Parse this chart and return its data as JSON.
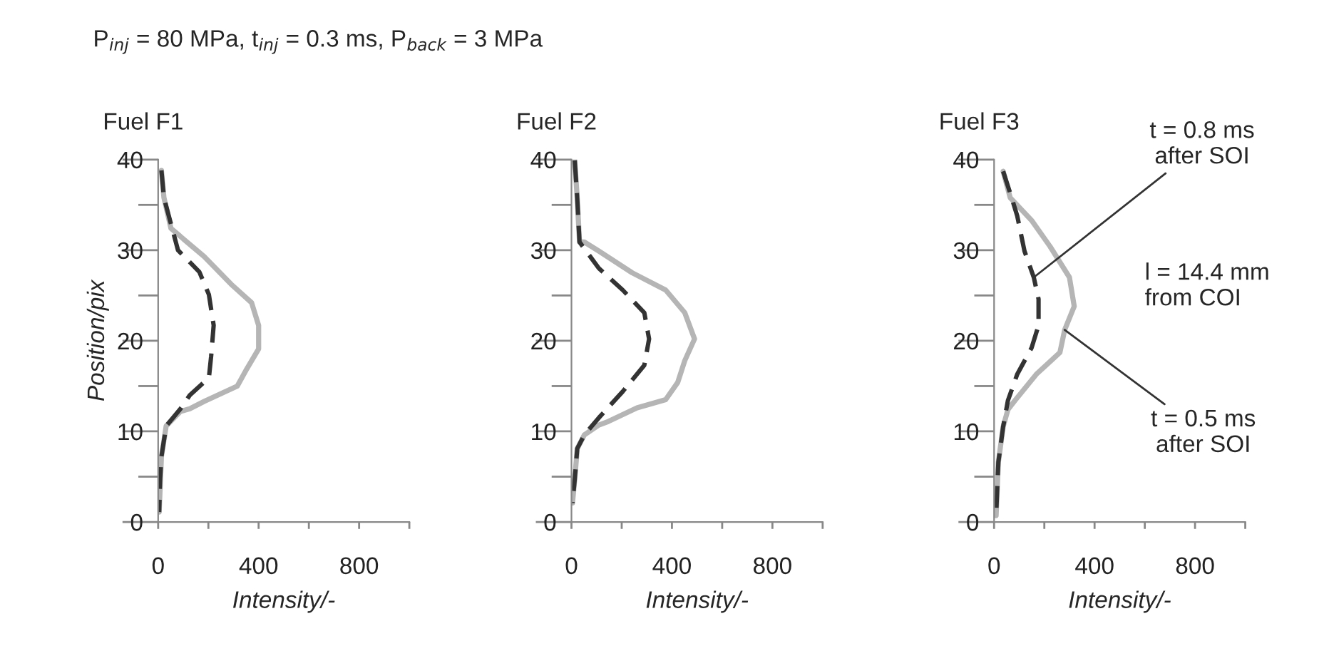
{
  "chart_data": [
    {
      "type": "line",
      "title": "P$_{inj}$ = 80 MPa, t$_{inj}$ = 0.3 ms, P$_{back}$ = 3 MPa",
      "subtitle": "Fuel F1",
      "xlabel": "Intensity/-",
      "ylabel": "Position/pix",
      "xlim": [
        0,
        1000
      ],
      "xticks": [
        0,
        {
          "value": 200,
          "label": null
        },
        400,
        {
          "value": 600,
          "label": null
        },
        800,
        {
          "value": 1000,
          "label": null
        }
      ],
      "ylim": [
        0,
        40
      ],
      "yticks": [
        0,
        {
          "value": 5,
          "label": null
        },
        10,
        {
          "value": 15,
          "label": null
        },
        20,
        {
          "value": 25,
          "label": null
        },
        30,
        {
          "value": 35,
          "label": null
        },
        40
      ],
      "grid": false,
      "legend": false,
      "series": [
        {
          "color": "#b5b5b5",
          "line_style": "solid",
          "x": [
            13,
            23,
            51,
            183,
            296,
            372,
            400,
            400,
            353,
            315,
            183,
            126,
            89,
            32,
            13,
            4
          ],
          "values": [
            38.8,
            35.8,
            32.4,
            29.3,
            26.1,
            24.2,
            21.7,
            19.1,
            16.9,
            15,
            13.3,
            12.5,
            12.2,
            10.6,
            7.2,
            1.1
          ]
        },
        {
          "color": "#333333",
          "line_style": "dashed",
          "x": [
            13,
            23,
            51,
            79,
            164,
            202,
            221,
            211,
            202,
            126,
            89,
            32,
            13,
            8,
            4
          ],
          "values": [
            38.8,
            35.8,
            32.9,
            30,
            27.6,
            25.1,
            21.7,
            18.3,
            15.9,
            14,
            12.5,
            10.6,
            7.2,
            4.8,
            1.1
          ]
        }
      ]
    },
    {
      "type": "line",
      "subtitle": "Fuel F2",
      "xlabel": "Intensity/-",
      "xlim": [
        0,
        1000
      ],
      "xticks": [
        0,
        {
          "value": 200,
          "label": null
        },
        400,
        {
          "value": 600,
          "label": null
        },
        800,
        {
          "value": 1000,
          "label": null
        }
      ],
      "ylim": [
        0,
        40
      ],
      "yticks": [
        0,
        {
          "value": 5,
          "label": null
        },
        10,
        {
          "value": 15,
          "label": null
        },
        20,
        {
          "value": 25,
          "label": null
        },
        30,
        {
          "value": 35,
          "label": null
        },
        40
      ],
      "grid": false,
      "legend": false,
      "series": [
        {
          "color": "#b5b5b5",
          "line_style": "solid",
          "x": [
            13,
            23,
            32,
            51,
            109,
            242,
            375,
            451,
            490,
            451,
            423,
            375,
            261,
            147,
            109,
            51,
            23,
            13,
            4
          ],
          "values": [
            39.9,
            35.7,
            30.9,
            30.9,
            29.9,
            27.5,
            25.6,
            23.1,
            20.2,
            17.8,
            15.4,
            13.5,
            12.6,
            11.1,
            10.7,
            9.6,
            8.1,
            4.7,
            2.1
          ]
        },
        {
          "color": "#333333",
          "line_style": "dashed",
          "x": [
            13,
            23,
            32,
            109,
            204,
            290,
            309,
            290,
            204,
            109,
            51,
            23,
            13,
            4
          ],
          "values": [
            39.9,
            35.7,
            30.9,
            28,
            25.6,
            23.1,
            20.2,
            17.3,
            14.4,
            11.5,
            9.6,
            8.1,
            4.7,
            2.1
          ]
        }
      ]
    },
    {
      "type": "line",
      "subtitle": "Fuel F3",
      "xlabel": "Intensity/-",
      "xlim": [
        0,
        1000
      ],
      "xticks": [
        0,
        {
          "value": 200,
          "label": null
        },
        400,
        {
          "value": 600,
          "label": null
        },
        800,
        {
          "value": 1000,
          "label": null
        }
      ],
      "ylim": [
        0,
        40
      ],
      "yticks": [
        0,
        {
          "value": 5,
          "label": null
        },
        10,
        {
          "value": 15,
          "label": null
        },
        20,
        {
          "value": 25,
          "label": null
        },
        30,
        {
          "value": 35,
          "label": null
        },
        40
      ],
      "grid": false,
      "legend": false,
      "annotations": [
        {
          "text": "t = 0.8 ms\nafter SOI",
          "x": 158,
          "y": 27
        },
        {
          "text": "t = 0.5 ms\nafter SOI",
          "x": 281,
          "y": 21.2
        },
        "l = 14.4 mm\nfrom COI"
      ],
      "series": [
        {
          "color": "#b5b5b5",
          "line_style": "solid",
          "x": [
            36,
            64,
            149,
            223,
            300,
            319,
            281,
            262,
            168,
            83,
            55,
            36,
            17,
            8
          ],
          "values": [
            38.7,
            35.8,
            33.3,
            30.4,
            27,
            23.8,
            21.2,
            18.7,
            16.3,
            13.4,
            12.4,
            10.5,
            6.6,
            0.7
          ]
        },
        {
          "color": "#333333",
          "line_style": "dashed",
          "x": [
            36,
            64,
            92,
            121,
            158,
            177,
            177,
            149,
            92,
            55,
            36,
            17,
            8
          ],
          "values": [
            38.7,
            36.3,
            33.8,
            29.9,
            27,
            24.6,
            21.7,
            19.2,
            16.3,
            13.4,
            10.5,
            6.6,
            0.7
          ]
        }
      ]
    }
  ]
}
